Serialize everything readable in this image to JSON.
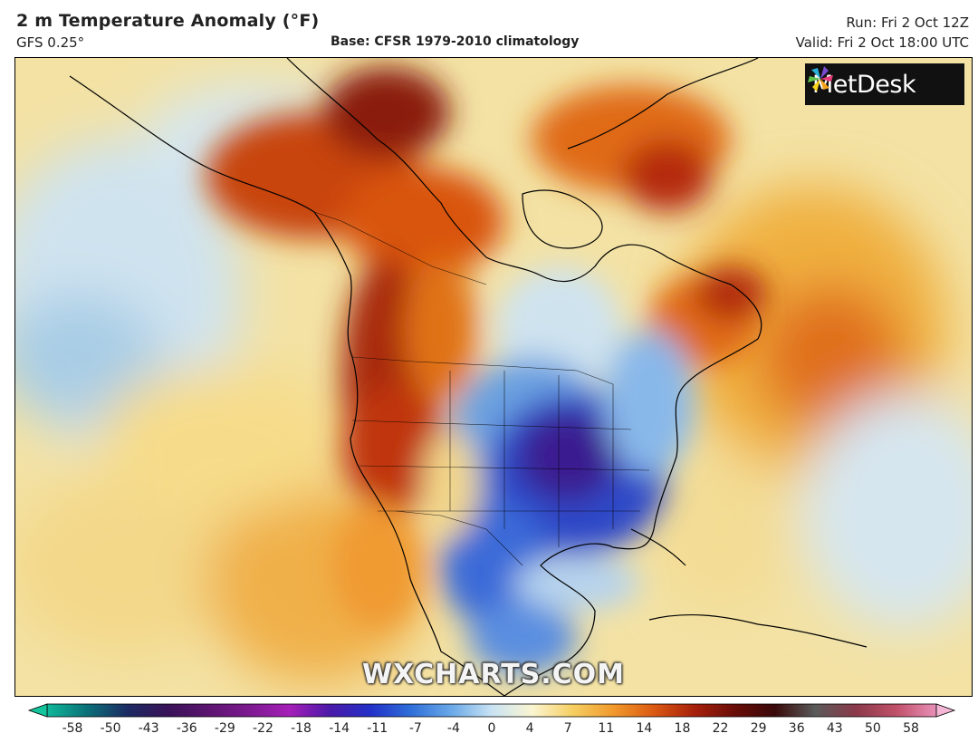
{
  "header": {
    "title": "2 m Temperature Anomaly (°F)",
    "model": "GFS 0.25°",
    "base": "Base: CFSR 1979-2010 climatology",
    "run": "Run: Fri 2 Oct 12Z",
    "valid": "Valid: Fri 2 Oct 18:00 UTC"
  },
  "logo": {
    "text": "MetDesk",
    "icon": "metdesk-pinwheel-icon"
  },
  "watermark": "WXCHARTS.COM",
  "colorbar": {
    "ticks": [
      "-58",
      "-50",
      "-43",
      "-36",
      "-29",
      "-22",
      "-18",
      "-14",
      "-11",
      "-7",
      "-4",
      "0",
      "4",
      "7",
      "11",
      "14",
      "18",
      "22",
      "29",
      "36",
      "43",
      "50",
      "58"
    ],
    "colors": [
      "#0fb89a",
      "#0b6f78",
      "#1c2a63",
      "#3a1358",
      "#5c1570",
      "#7d1a90",
      "#a51fb8",
      "#4b1aa8",
      "#2330c8",
      "#2f6fd8",
      "#6aa8e8",
      "#c9e3f3",
      "#fbf5d2",
      "#f6cf62",
      "#f19a2c",
      "#db5a12",
      "#a8210c",
      "#6a0d08",
      "#3a0a0a",
      "#5a5a5a",
      "#8a3a4a",
      "#c0506a",
      "#e890b8"
    ],
    "arrow_left_color": "#13c49c",
    "arrow_right_color": "#f4b6d4"
  }
}
